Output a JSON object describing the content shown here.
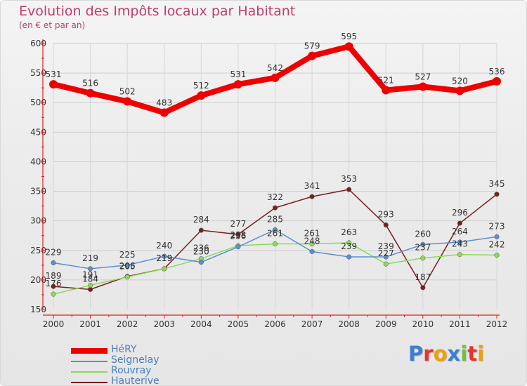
{
  "chart_data": {
    "type": "line",
    "title": "Evolution des Impôts locaux par Habitant",
    "subtitle": "(en € et par an)",
    "xlabel": "",
    "ylabel": "",
    "ylim": [
      150,
      600
    ],
    "yticks": [
      150,
      200,
      250,
      300,
      350,
      400,
      450,
      500,
      550,
      600
    ],
    "x": [
      "2000",
      "2001",
      "2002",
      "2003",
      "2004",
      "2005",
      "2006",
      "2007",
      "2008",
      "2009",
      "2010",
      "2011",
      "2012"
    ],
    "grid": true,
    "series": [
      {
        "name": "HéRY",
        "color": "#ee0000",
        "values": [
          531,
          516,
          502,
          483,
          512,
          531,
          542,
          579,
          595,
          521,
          527,
          520,
          536
        ]
      },
      {
        "name": "Seignelay",
        "color": "#5b8fd0",
        "values": [
          229,
          219,
          225,
          240,
          230,
          256,
          285,
          248,
          239,
          239,
          260,
          264,
          273
        ]
      },
      {
        "name": "Rouvray",
        "color": "#88dd55",
        "values": [
          176,
          191,
          205,
          219,
          236,
          258,
          261,
          261,
          263,
          227,
          237,
          243,
          242
        ]
      },
      {
        "name": "Hauterive",
        "color": "#7a1f1f",
        "values": [
          189,
          184,
          206,
          219,
          284,
          277,
          322,
          341,
          353,
          293,
          187,
          296,
          345
        ]
      }
    ]
  },
  "brand": {
    "letters": [
      "P",
      "r",
      "o",
      "x",
      "i",
      "t",
      "i"
    ],
    "colors": [
      "#3b7fd3",
      "#e8342b",
      "#f2a000",
      "#3b7fd3",
      "#72c03d",
      "#e8342b",
      "#f2a000"
    ]
  }
}
